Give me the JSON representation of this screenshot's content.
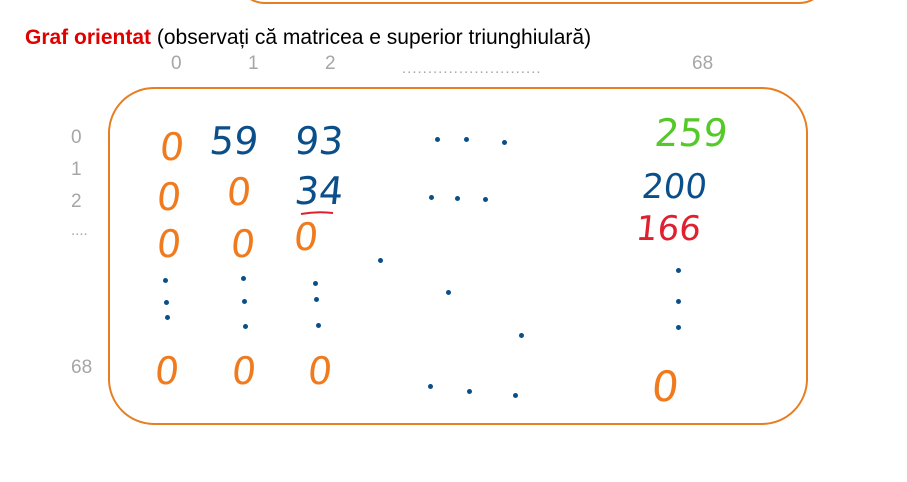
{
  "title": {
    "strong": "Graf orientat",
    "note": " (observați că matricea e superior triunghiulară)"
  },
  "column_headers": [
    "0",
    "1",
    "2",
    "...........................",
    "68"
  ],
  "row_headers": [
    "0",
    "1",
    "2",
    "....",
    "68"
  ],
  "matrix": {
    "row0": [
      "0",
      "59",
      "93",
      "259"
    ],
    "row1": [
      "0",
      "0",
      "34",
      "200"
    ],
    "row2": [
      "0",
      "0",
      "0",
      "166"
    ],
    "row68": [
      "0",
      "0",
      "0",
      "0"
    ]
  },
  "colors": {
    "frame": "#e67e22",
    "zero": "#f07b1e",
    "value": "#0b4f8a",
    "highlight_259": "#55c92a",
    "highlight_166": "#e0202f"
  }
}
